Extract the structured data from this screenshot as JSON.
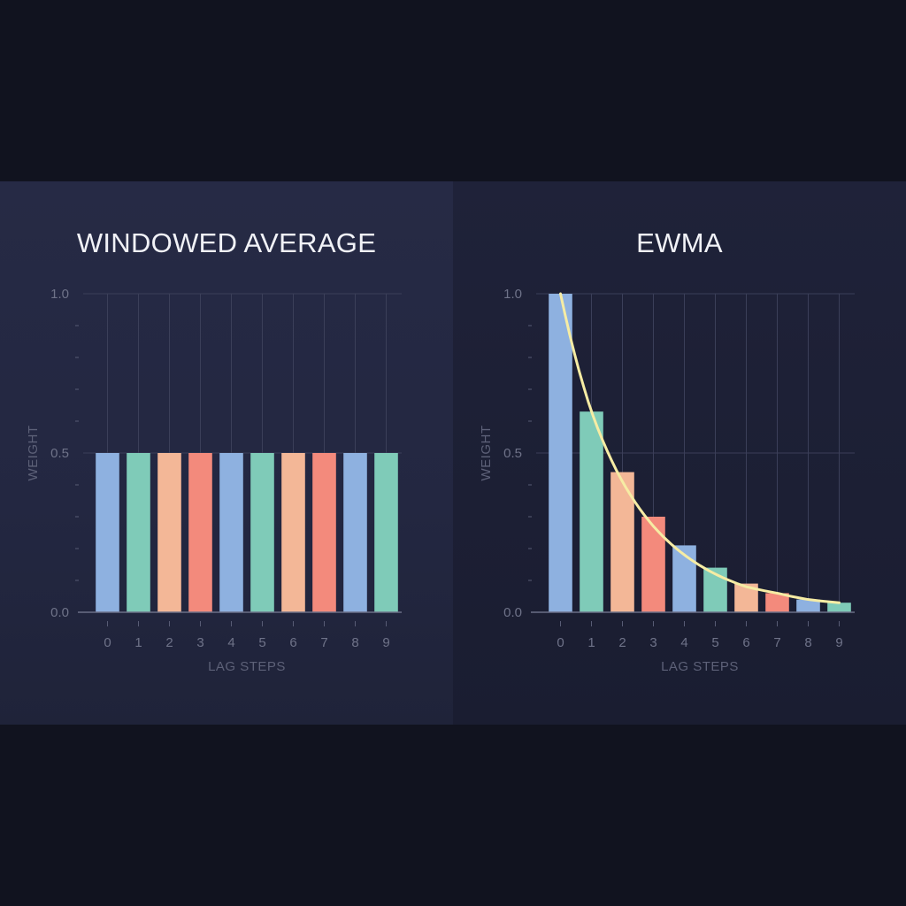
{
  "chart_data": [
    {
      "type": "bar",
      "title": "WINDOWED AVERAGE",
      "xlabel": "LAG STEPS",
      "ylabel": "WEIGHT",
      "categories": [
        "0",
        "1",
        "2",
        "3",
        "4",
        "5",
        "6",
        "7",
        "8",
        "9"
      ],
      "values": [
        0.5,
        0.5,
        0.5,
        0.5,
        0.5,
        0.5,
        0.5,
        0.5,
        0.5,
        0.5
      ],
      "ylim": [
        0,
        1
      ],
      "yticks": [
        "0.0",
        "0.5",
        "1.0"
      ],
      "grid": true,
      "bar_colors": [
        "#8eb1e0",
        "#7fcbb8",
        "#f3b797",
        "#f38a7c"
      ]
    },
    {
      "type": "bar",
      "title": "EWMA",
      "xlabel": "LAG STEPS",
      "ylabel": "WEIGHT",
      "categories": [
        "0",
        "1",
        "2",
        "3",
        "4",
        "5",
        "6",
        "7",
        "8",
        "9"
      ],
      "values": [
        1.0,
        0.63,
        0.44,
        0.3,
        0.21,
        0.14,
        0.09,
        0.06,
        0.04,
        0.03
      ],
      "curve": [
        1.0,
        0.63,
        0.41,
        0.27,
        0.18,
        0.12,
        0.08,
        0.06,
        0.04,
        0.03
      ],
      "curve_color": "#f6eca4",
      "ylim": [
        0,
        1
      ],
      "yticks": [
        "0.0",
        "0.5",
        "1.0"
      ],
      "grid": true,
      "bar_colors": [
        "#8eb1e0",
        "#7fcbb8",
        "#f3b797",
        "#f38a7c"
      ]
    }
  ]
}
